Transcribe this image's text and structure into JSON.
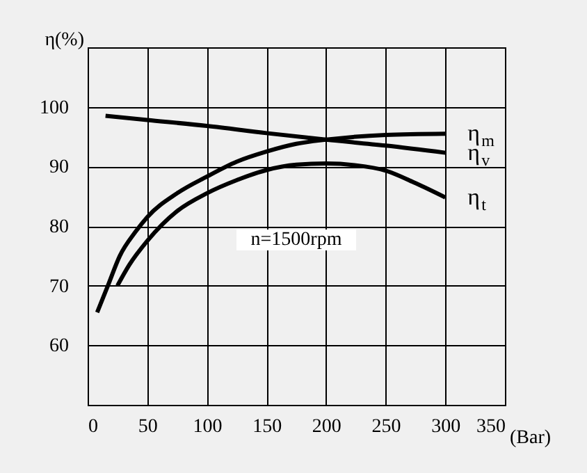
{
  "chart_data": {
    "type": "line",
    "xlabel": "(Bar)",
    "ylabel": "η(%)",
    "annotations": [
      "n=1500rpm"
    ],
    "xlim": [
      0,
      350
    ],
    "xticks": [
      0,
      50,
      100,
      150,
      200,
      250,
      300,
      350
    ],
    "ylim": [
      50,
      110
    ],
    "yticks": [
      60,
      70,
      80,
      90,
      100,
      {
        "value": 110,
        "label": null
      }
    ],
    "grid": true,
    "series": [
      {
        "name": "η$_{m}$",
        "color": "#000000",
        "x": [
          8,
          17,
          27,
          40,
          50,
          75,
          100,
          125,
          150,
          175,
          200,
          250,
          300
        ],
        "values": [
          65.5,
          70,
          75,
          79,
          81.5,
          85.5,
          88.3,
          90.8,
          92.5,
          93.8,
          94.5,
          95.3,
          95.5
        ]
      },
      {
        "name": "η$_{v}$",
        "color": "#000000",
        "x": [
          15,
          50,
          100,
          150,
          200,
          250,
          300
        ],
        "values": [
          98.5,
          97.8,
          96.8,
          95.6,
          94.5,
          93.5,
          92.3
        ]
      },
      {
        "name": "η$_{t}$",
        "color": "#000000",
        "x": [
          25,
          35,
          50,
          75,
          100,
          125,
          150,
          175,
          200,
          225,
          250,
          275,
          300
        ],
        "values": [
          70,
          73.5,
          77.5,
          82.5,
          85.5,
          87.7,
          89.4,
          90.3,
          90.5,
          90.2,
          89.3,
          87.2,
          84.8
        ]
      }
    ]
  }
}
